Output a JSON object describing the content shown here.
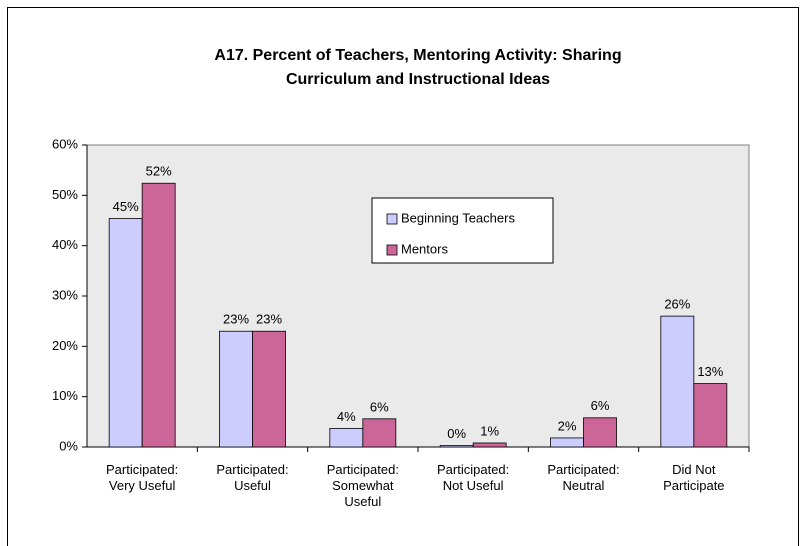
{
  "chart_data": {
    "type": "bar",
    "title": "A17. Percent of Teachers, Mentoring Activity: Sharing\nCurriculum and Instructional Ideas",
    "categories": [
      "Participated:\nVery Useful",
      "Participated:\nUseful",
      "Participated:\nSomewhat\nUseful",
      "Participated:\nNot Useful",
      "Participated:\nNeutral",
      "Did Not\nParticipate"
    ],
    "series": [
      {
        "name": "Beginning Teachers",
        "color": "#ccccff",
        "values": [
          45.4,
          23.0,
          3.7,
          0.3,
          1.8,
          26.0
        ],
        "value_labels": [
          "45%",
          "23%",
          "4%",
          "0%",
          "2%",
          "26%"
        ]
      },
      {
        "name": "Mentors",
        "color": "#cc6699",
        "values": [
          52.4,
          23.0,
          5.6,
          0.8,
          5.8,
          12.6
        ],
        "value_labels": [
          "52%",
          "23%",
          "6%",
          "1%",
          "6%",
          "13%"
        ]
      }
    ],
    "ylim": [
      0,
      60
    ],
    "yticks": [
      {
        "value": 0,
        "label": "0%"
      },
      {
        "value": 10,
        "label": "10%"
      },
      {
        "value": 20,
        "label": "20%"
      },
      {
        "value": 30,
        "label": "30%"
      },
      {
        "value": 40,
        "label": "40%"
      },
      {
        "value": 50,
        "label": "50%"
      },
      {
        "value": 60,
        "label": "60%"
      }
    ],
    "grid": false,
    "plot_background": "#eaeaea"
  }
}
